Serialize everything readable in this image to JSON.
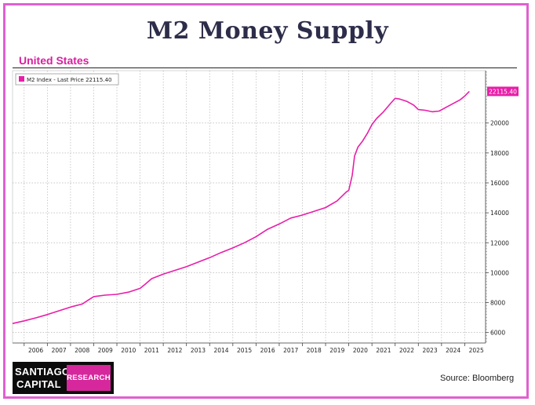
{
  "page": {
    "title": "M2 Money Supply",
    "subtitle": "United States",
    "source": "Source: Bloomberg",
    "logo_line1": "SANTIAGO",
    "logo_line2": "CAPITAL",
    "logo_badge": "RESEARCH",
    "colors": {
      "frame": "#e060d0",
      "line": "#e81ea8",
      "subtitle": "#d81fa0",
      "logo_badge": "#d6289c"
    }
  },
  "chart_data": {
    "type": "line",
    "xlabel": "",
    "ylabel": "",
    "x_ticks": [
      "2006",
      "2007",
      "2008",
      "2009",
      "2010",
      "2011",
      "2012",
      "2013",
      "2014",
      "2015",
      "2016",
      "2017",
      "2018",
      "2019",
      "2020",
      "2021",
      "2022",
      "2023",
      "2024",
      "2025"
    ],
    "y_ticks": [
      6000,
      8000,
      10000,
      12000,
      14000,
      16000,
      18000,
      20000
    ],
    "xlim": [
      2005.5,
      2025.9
    ],
    "ylim": [
      5300,
      23500
    ],
    "grid": true,
    "legend_position": "top-left",
    "legend_label": "M2 Index - Last Price 22115.40",
    "last_price_label": "22115.40",
    "series": [
      {
        "name": "M2 Index",
        "x": [
          2005.5,
          2006.0,
          2006.5,
          2007.0,
          2007.5,
          2008.0,
          2008.5,
          2008.8,
          2009.0,
          2009.5,
          2010.0,
          2010.5,
          2011.0,
          2011.2,
          2011.5,
          2012.0,
          2012.5,
          2013.0,
          2013.5,
          2014.0,
          2014.5,
          2015.0,
          2015.5,
          2016.0,
          2016.5,
          2017.0,
          2017.5,
          2018.0,
          2018.5,
          2019.0,
          2019.5,
          2019.9,
          2020.0,
          2020.15,
          2020.25,
          2020.4,
          2020.6,
          2020.8,
          2021.0,
          2021.2,
          2021.5,
          2021.8,
          2022.0,
          2022.2,
          2022.5,
          2022.8,
          2023.0,
          2023.3,
          2023.6,
          2023.9,
          2024.2,
          2024.5,
          2024.8,
          2025.0,
          2025.2
        ],
        "y": [
          6600,
          6780,
          6980,
          7200,
          7450,
          7700,
          7900,
          8200,
          8400,
          8500,
          8550,
          8700,
          8950,
          9200,
          9600,
          9900,
          10150,
          10400,
          10700,
          11000,
          11350,
          11650,
          12000,
          12400,
          12900,
          13250,
          13650,
          13850,
          14100,
          14350,
          14800,
          15400,
          15500,
          16500,
          17800,
          18400,
          18800,
          19300,
          19900,
          20300,
          20750,
          21300,
          21650,
          21600,
          21450,
          21200,
          20900,
          20850,
          20750,
          20800,
          21050,
          21300,
          21550,
          21800,
          22115
        ]
      }
    ]
  }
}
